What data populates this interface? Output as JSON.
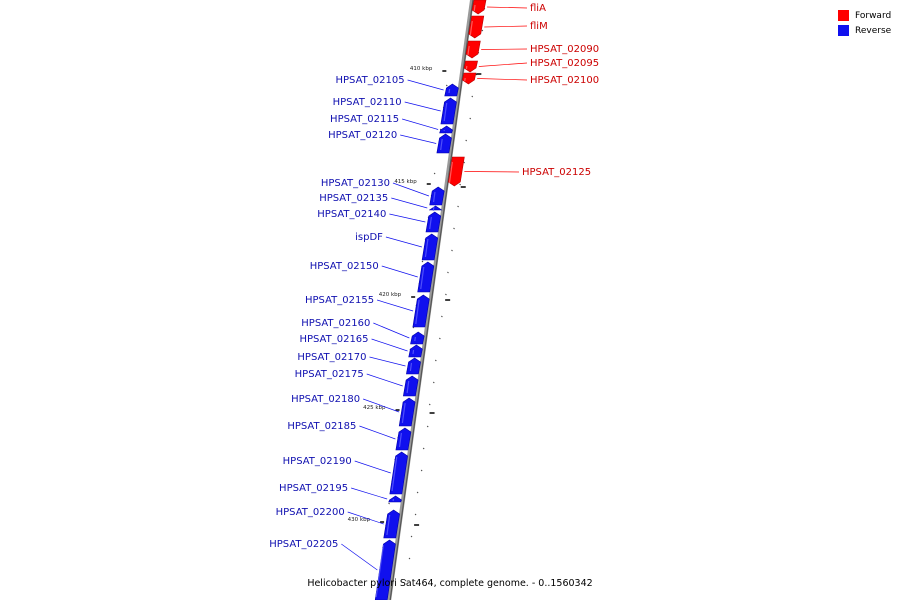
{
  "caption": "Helicobacter pylori Sat464, complete genome. - 0..1560342",
  "legend": {
    "forward_label": "Forward",
    "reverse_label": "Reverse",
    "forward_color": "#ff0000",
    "reverse_color": "#1010ee"
  },
  "ticks": [
    "410 kbp",
    "415 kbp",
    "420 kbp",
    "425 kbp",
    "430 kbp"
  ],
  "features": [
    {
      "name": "fliA",
      "strand": "forward"
    },
    {
      "name": "fliM",
      "strand": "forward"
    },
    {
      "name": "HPSAT_02090",
      "strand": "forward"
    },
    {
      "name": "HPSAT_02095",
      "strand": "forward"
    },
    {
      "name": "HPSAT_02100",
      "strand": "forward"
    },
    {
      "name": "HPSAT_02105",
      "strand": "reverse"
    },
    {
      "name": "HPSAT_02110",
      "strand": "reverse"
    },
    {
      "name": "HPSAT_02115",
      "strand": "reverse"
    },
    {
      "name": "HPSAT_02120",
      "strand": "reverse"
    },
    {
      "name": "HPSAT_02125",
      "strand": "forward"
    },
    {
      "name": "HPSAT_02130",
      "strand": "reverse"
    },
    {
      "name": "HPSAT_02135",
      "strand": "reverse"
    },
    {
      "name": "HPSAT_02140",
      "strand": "reverse"
    },
    {
      "name": "ispDF",
      "strand": "reverse"
    },
    {
      "name": "HPSAT_02150",
      "strand": "reverse"
    },
    {
      "name": "HPSAT_02155",
      "strand": "reverse"
    },
    {
      "name": "HPSAT_02160",
      "strand": "reverse"
    },
    {
      "name": "HPSAT_02165",
      "strand": "reverse"
    },
    {
      "name": "HPSAT_02170",
      "strand": "reverse"
    },
    {
      "name": "HPSAT_02175",
      "strand": "reverse"
    },
    {
      "name": "HPSAT_02180",
      "strand": "reverse"
    },
    {
      "name": "HPSAT_02185",
      "strand": "reverse"
    },
    {
      "name": "HPSAT_02190",
      "strand": "reverse"
    },
    {
      "name": "HPSAT_02195",
      "strand": "reverse"
    },
    {
      "name": "HPSAT_02200",
      "strand": "reverse"
    },
    {
      "name": "HPSAT_02205",
      "strand": "reverse"
    }
  ]
}
